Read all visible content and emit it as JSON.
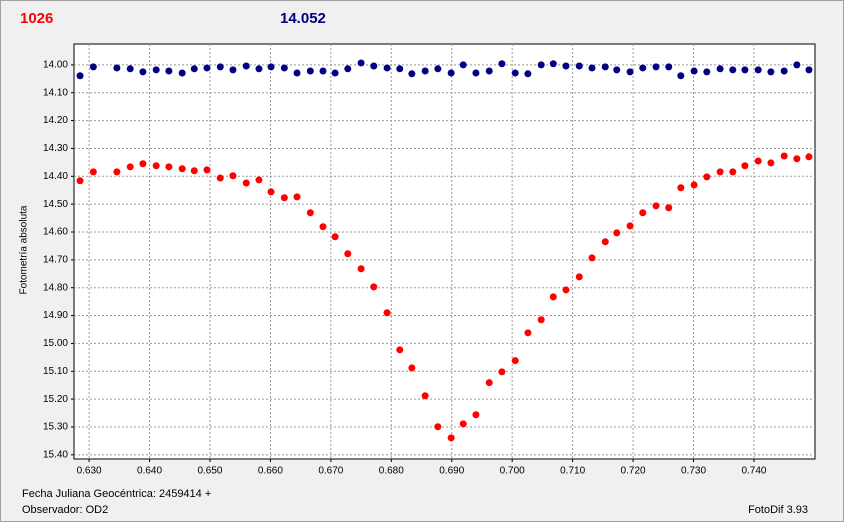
{
  "chart_data": {
    "type": "scatter",
    "y_label": "Fotometría absoluta",
    "footer_left": [
      "Fecha Juliana Geocéntrica: 2459414 +",
      "Observador: OD2"
    ],
    "footer_right": "FotoDif 3.93",
    "y_inverted": true,
    "grid": true,
    "xlim": [
      0.6275,
      0.7501
    ],
    "ylim": [
      13.925,
      15.415
    ],
    "xticks": [
      {
        "value": 0.63,
        "label": "0.630"
      },
      {
        "value": 0.64,
        "label": "0.640"
      },
      {
        "value": 0.65,
        "label": "0.650"
      },
      {
        "value": 0.66,
        "label": "0.660"
      },
      {
        "value": 0.67,
        "label": "0.670"
      },
      {
        "value": 0.68,
        "label": "0.680"
      },
      {
        "value": 0.69,
        "label": "0.690"
      },
      {
        "value": 0.7,
        "label": "0.700"
      },
      {
        "value": 0.71,
        "label": "0.710"
      },
      {
        "value": 0.72,
        "label": "0.720"
      },
      {
        "value": 0.73,
        "label": "0.730"
      },
      {
        "value": 0.74,
        "label": "0.740"
      }
    ],
    "yticks": [
      {
        "value": 14.0,
        "label": "14.00"
      },
      {
        "value": 14.1,
        "label": "14.10"
      },
      {
        "value": 14.2,
        "label": "14.20"
      },
      {
        "value": 14.3,
        "label": "14.30"
      },
      {
        "value": 14.4,
        "label": "14.40"
      },
      {
        "value": 14.5,
        "label": "14.50"
      },
      {
        "value": 14.6,
        "label": "14.60"
      },
      {
        "value": 14.7,
        "label": "14.70"
      },
      {
        "value": 14.8,
        "label": "14.80"
      },
      {
        "value": 14.9,
        "label": "14.90"
      },
      {
        "value": 15.0,
        "label": "15.00"
      },
      {
        "value": 15.1,
        "label": "15.10"
      },
      {
        "value": 15.2,
        "label": "15.20"
      },
      {
        "value": 15.3,
        "label": "15.30"
      },
      {
        "value": 15.4,
        "label": "15.40"
      }
    ],
    "x": [
      0.6285,
      0.6307,
      0.6346,
      0.6368,
      0.6389,
      0.6411,
      0.6432,
      0.6454,
      0.6474,
      0.6495,
      0.6517,
      0.6538,
      0.656,
      0.6581,
      0.6601,
      0.6623,
      0.6644,
      0.6666,
      0.6687,
      0.6707,
      0.6728,
      0.675,
      0.6771,
      0.6793,
      0.6814,
      0.6834,
      0.6856,
      0.6877,
      0.6899,
      0.6919,
      0.694,
      0.6962,
      0.6983,
      0.7005,
      0.7026,
      0.7048,
      0.7068,
      0.7089,
      0.7111,
      0.7132,
      0.7154,
      0.7173,
      0.7195,
      0.7216,
      0.7238,
      0.7259,
      0.7279,
      0.7301,
      0.7322,
      0.7344,
      0.7365,
      0.7385,
      0.7407,
      0.7428,
      0.745,
      0.7471,
      0.7491
    ],
    "series": [
      {
        "name": "1026",
        "color": "#ff0000",
        "values": [
          14.416,
          14.384,
          14.384,
          14.366,
          14.355,
          14.362,
          14.366,
          14.373,
          14.38,
          14.377,
          14.406,
          14.398,
          14.424,
          14.413,
          14.456,
          14.477,
          14.474,
          14.531,
          14.581,
          14.617,
          14.678,
          14.732,
          14.797,
          14.89,
          15.023,
          15.088,
          15.188,
          15.299,
          15.339,
          15.289,
          15.256,
          15.141,
          15.102,
          15.062,
          14.962,
          14.915,
          14.833,
          14.808,
          14.761,
          14.693,
          14.635,
          14.603,
          14.578,
          14.531,
          14.506,
          14.513,
          14.441,
          14.431,
          14.402,
          14.384,
          14.384,
          14.362,
          14.345,
          14.352,
          14.327,
          14.337,
          14.33
        ]
      },
      {
        "name": "14.052",
        "color": "#000080",
        "values": [
          14.039,
          14.007,
          14.011,
          14.014,
          14.025,
          14.018,
          14.022,
          14.029,
          14.014,
          14.011,
          14.007,
          14.018,
          14.004,
          14.014,
          14.007,
          14.011,
          14.029,
          14.022,
          14.022,
          14.029,
          14.014,
          13.993,
          14.004,
          14.011,
          14.014,
          14.032,
          14.022,
          14.014,
          14.029,
          14.0,
          14.029,
          14.022,
          13.996,
          14.029,
          14.032,
          14.0,
          13.996,
          14.004,
          14.004,
          14.011,
          14.007,
          14.018,
          14.025,
          14.011,
          14.007,
          14.007,
          14.039,
          14.022,
          14.025,
          14.014,
          14.018,
          14.018,
          14.018,
          14.025,
          14.022,
          14.0,
          14.018
        ]
      }
    ]
  }
}
